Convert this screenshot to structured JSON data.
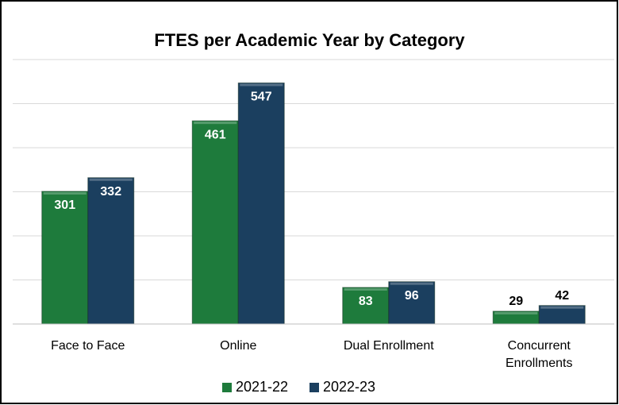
{
  "chart_data": {
    "type": "bar",
    "title": "FTES per Academic Year by Category",
    "categories": [
      "Face to Face",
      "Online",
      "Dual Enrollment",
      "Concurrent Enrollments"
    ],
    "series": [
      {
        "name": "2021-22",
        "color": "#1e7b3c",
        "values": [
          301,
          461,
          83,
          29
        ]
      },
      {
        "name": "2022-23",
        "color": "#1b3f5f",
        "values": [
          332,
          547,
          96,
          42
        ]
      }
    ],
    "ylim": [
      0,
      600
    ],
    "yticks": [
      0,
      100,
      200,
      300,
      400,
      500,
      600
    ],
    "grid": true,
    "legend": "bottom"
  }
}
